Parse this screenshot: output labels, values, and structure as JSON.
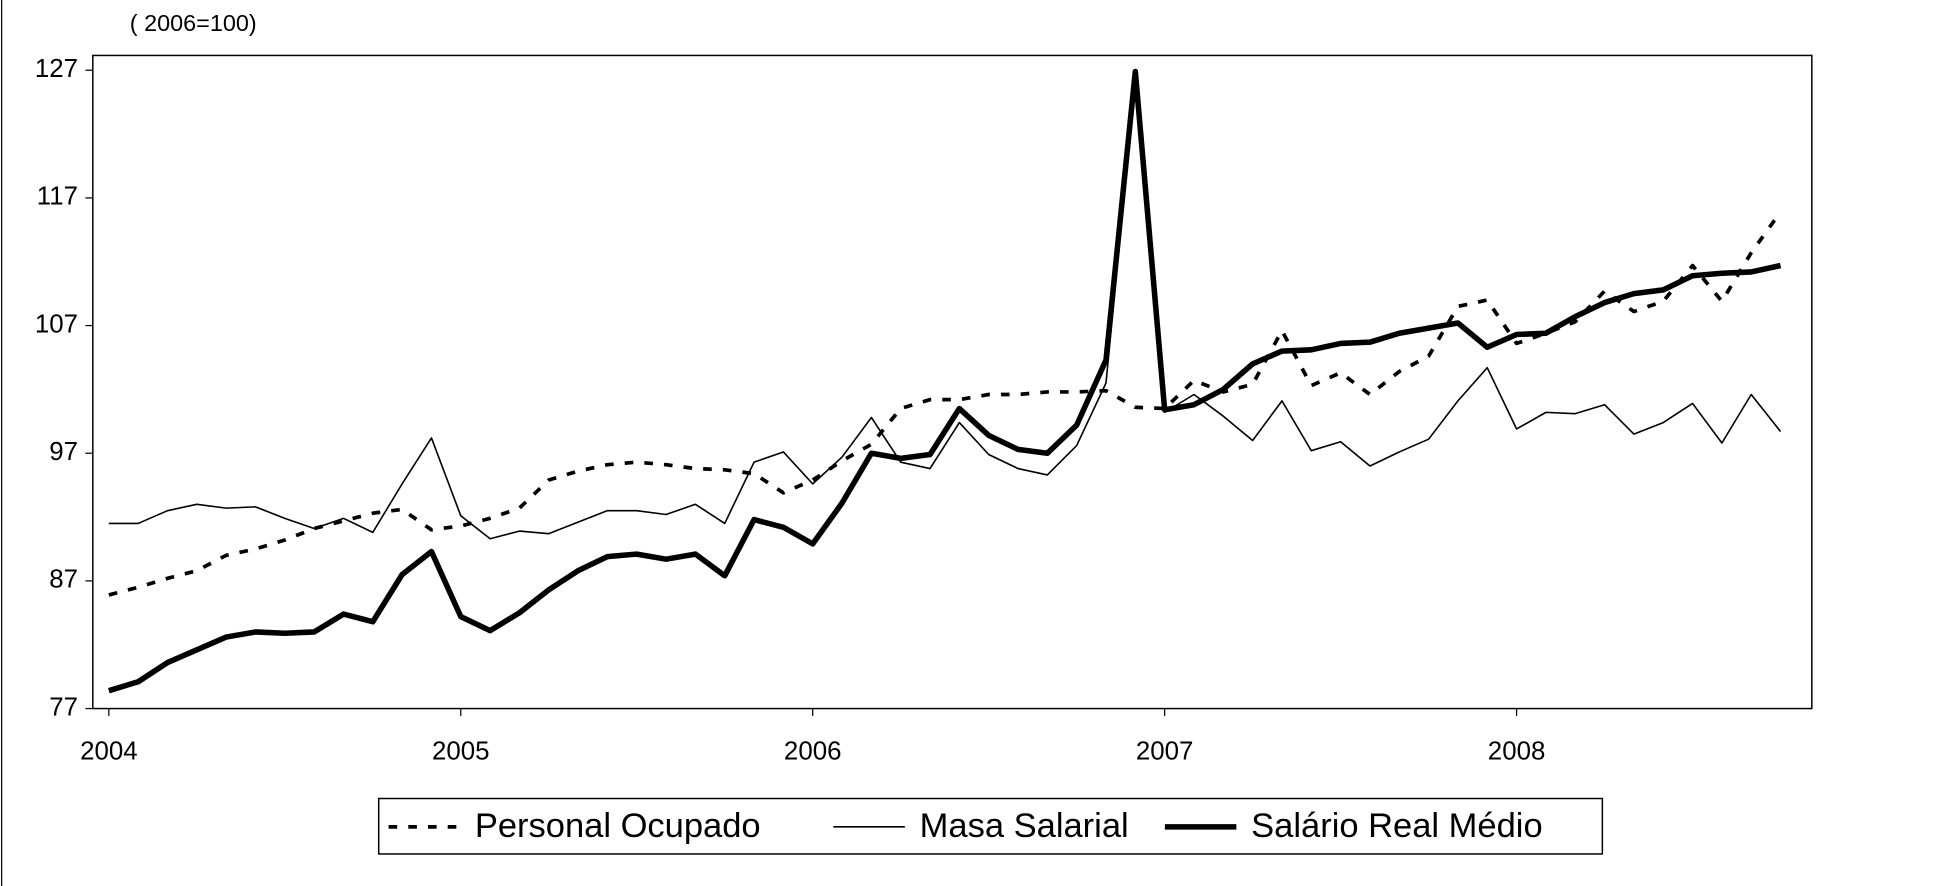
{
  "chart_data": {
    "type": "line",
    "subtitle": "( 2006=100)",
    "categories": [
      "2004",
      null,
      null,
      null,
      null,
      null,
      null,
      null,
      null,
      null,
      null,
      null,
      "2005",
      null,
      null,
      null,
      null,
      null,
      null,
      null,
      null,
      null,
      null,
      null,
      "2006",
      null,
      null,
      null,
      null,
      null,
      null,
      null,
      null,
      null,
      null,
      null,
      "2007",
      null,
      null,
      null,
      null,
      null,
      null,
      null,
      null,
      null,
      null,
      null,
      "2008",
      null,
      null,
      null,
      null,
      null,
      null,
      null,
      null,
      null
    ],
    "ylim": [
      77,
      127
    ],
    "yticks": [
      77,
      87,
      97,
      107,
      117,
      127
    ],
    "grid": false,
    "series": [
      {
        "name": "Personal Ocupado",
        "color": "#000000",
        "dash": true,
        "line_width": 3,
        "values": [
          85.9,
          86.5,
          87.2,
          87.8,
          89.0,
          89.5,
          90.2,
          91.1,
          91.7,
          92.3,
          92.6,
          91.0,
          91.3,
          91.9,
          92.7,
          94.9,
          95.6,
          96.1,
          96.3,
          96.1,
          95.8,
          95.7,
          95.4,
          93.9,
          94.9,
          96.4,
          97.7,
          100.5,
          101.2,
          101.2,
          101.6,
          101.6,
          101.8,
          101.8,
          101.9,
          100.6,
          100.5,
          102.7,
          101.8,
          102.4,
          106.6,
          102.3,
          103.3,
          101.6,
          103.4,
          104.6,
          108.5,
          109.0,
          105.6,
          106.4,
          107.3,
          109.7,
          108.1,
          108.9,
          111.7,
          108.9,
          112.7,
          115.9
        ]
      },
      {
        "name": "Masa Salarial",
        "color": "#000000",
        "dash": false,
        "line_width": 1.3,
        "values": [
          91.5,
          91.5,
          92.5,
          93.0,
          92.7,
          92.8,
          91.9,
          91.1,
          91.9,
          90.8,
          94.6,
          98.2,
          92.1,
          90.3,
          90.9,
          90.7,
          91.6,
          92.5,
          92.5,
          92.2,
          93.0,
          91.5,
          96.3,
          97.1,
          94.6,
          96.7,
          99.8,
          96.3,
          95.8,
          99.4,
          96.9,
          95.8,
          95.3,
          97.6,
          102.5,
          126.2,
          100.2,
          101.6,
          99.9,
          98.0,
          101.1,
          97.2,
          97.9,
          96.0,
          97.1,
          98.1,
          101.1,
          103.7,
          98.9,
          100.2,
          100.1,
          100.8,
          98.5,
          99.4,
          100.9,
          97.8,
          101.6,
          98.7
        ]
      },
      {
        "name": "Salário Real Médio",
        "color": "#000000",
        "dash": false,
        "line_width": 4.5,
        "values": [
          78.4,
          79.1,
          80.6,
          81.6,
          82.6,
          83.0,
          82.9,
          83.0,
          84.4,
          83.8,
          87.5,
          89.3,
          84.2,
          83.1,
          84.5,
          86.3,
          87.8,
          88.9,
          89.1,
          88.7,
          89.1,
          87.4,
          91.8,
          91.2,
          89.9,
          93.1,
          97.0,
          96.6,
          96.9,
          100.5,
          98.4,
          97.3,
          97.0,
          99.2,
          104.3,
          126.9,
          100.4,
          100.8,
          102.0,
          104.0,
          105.0,
          105.1,
          105.6,
          105.7,
          106.4,
          106.8,
          107.2,
          105.3,
          106.3,
          106.4,
          107.7,
          108.8,
          109.5,
          109.8,
          110.9,
          111.1,
          111.2,
          111.7
        ]
      }
    ]
  }
}
